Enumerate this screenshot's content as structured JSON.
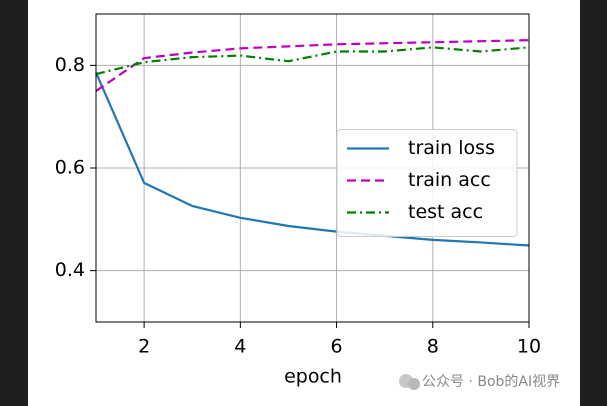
{
  "chart_data": {
    "type": "line",
    "xlabel": "epoch",
    "x": [
      1,
      2,
      3,
      4,
      5,
      6,
      7,
      8,
      9,
      10
    ],
    "xlim": [
      1,
      10
    ],
    "xticks": [
      2,
      4,
      6,
      8,
      10
    ],
    "ylim": [
      0.3,
      0.9
    ],
    "yticks": [
      0.4,
      0.6,
      0.8
    ],
    "grid": true,
    "legend": "right",
    "series": [
      {
        "name": "train loss",
        "color": "#1f77b4",
        "linestyle": "solid",
        "values": [
          0.786,
          0.571,
          0.526,
          0.503,
          0.487,
          0.476,
          0.468,
          0.46,
          0.455,
          0.449
        ]
      },
      {
        "name": "train acc",
        "color": "#bf00bf",
        "linestyle": "dashed",
        "values": [
          0.75,
          0.814,
          0.825,
          0.833,
          0.837,
          0.841,
          0.843,
          0.845,
          0.847,
          0.849
        ]
      },
      {
        "name": "test acc",
        "color": "#008000",
        "linestyle": "dashdot",
        "values": [
          0.783,
          0.806,
          0.816,
          0.819,
          0.808,
          0.827,
          0.827,
          0.835,
          0.827,
          0.835
        ]
      }
    ]
  },
  "watermark": "公众号 · Bob的AI视界"
}
